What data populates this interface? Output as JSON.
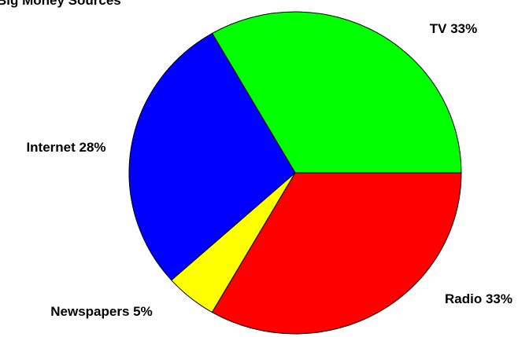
{
  "chart_data": {
    "type": "pie",
    "title": "Big Money Sources",
    "start_angle_deg": 0,
    "direction": "counterclockwise",
    "slices": [
      {
        "label": "TV",
        "value": 33,
        "display": "TV 33%",
        "color": "#00ff00"
      },
      {
        "label": "Internet",
        "value": 28,
        "display": "Internet 28%",
        "color": "#0000ff"
      },
      {
        "label": "Newspapers",
        "value": 5,
        "display": "Newspapers 5%",
        "color": "#ffff00"
      },
      {
        "label": "Radio",
        "value": 33,
        "display": "Radio 33%",
        "color": "#ff0000"
      }
    ],
    "legend": "none",
    "grid": false
  }
}
